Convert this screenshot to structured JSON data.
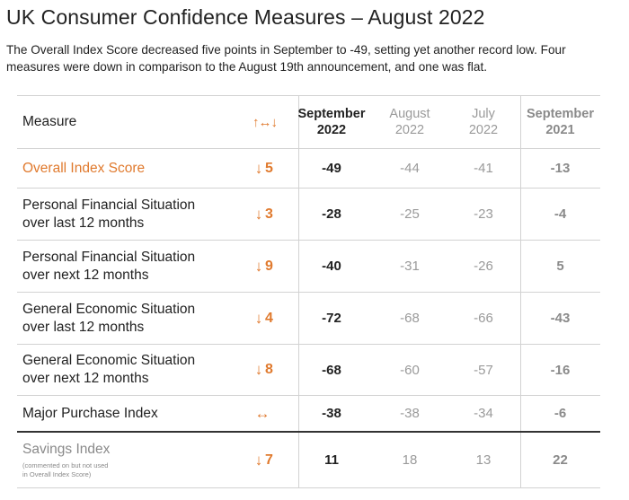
{
  "title": "UK Consumer Confidence Measures – August 2022",
  "subtitle": "The Overall Index Score decreased five points in September to -49, setting yet another record low. Four measures were down in comparison to the August 19th announcement, and one was flat.",
  "colors": {
    "accent": "#e07a2e",
    "muted": "#9a9a9a",
    "text": "#222222"
  },
  "table": {
    "headers": {
      "measure": "Measure",
      "change_icon": "up-left-right-down-arrows",
      "change_glyph": "↑↔↓",
      "sep22": [
        "September",
        "2022"
      ],
      "aug22": [
        "August",
        "2022"
      ],
      "jul22": [
        "July",
        "2022"
      ],
      "sep21": [
        "September",
        "2021"
      ]
    },
    "rows": [
      {
        "line1": "Overall Index Score",
        "line2": "",
        "arrow": "↓",
        "change": "5",
        "sep22": "-49",
        "aug22": "-44",
        "jul22": "-41",
        "sep21": "-13"
      },
      {
        "line1": "Personal Financial Situation",
        "line2": "over last 12 months",
        "arrow": "↓",
        "change": "3",
        "sep22": "-28",
        "aug22": "-25",
        "jul22": "-23",
        "sep21": "-4"
      },
      {
        "line1": "Personal Financial Situation",
        "line2": "over next 12 months",
        "arrow": "↓",
        "change": "9",
        "sep22": "-40",
        "aug22": "-31",
        "jul22": "-26",
        "sep21": "5"
      },
      {
        "line1": "General Economic Situation",
        "line2": "over last 12 months",
        "arrow": "↓",
        "change": "4",
        "sep22": "-72",
        "aug22": "-68",
        "jul22": "-66",
        "sep21": "-43"
      },
      {
        "line1": "General Economic Situation",
        "line2": "over next 12 months",
        "arrow": "↓",
        "change": "8",
        "sep22": "-68",
        "aug22": "-60",
        "jul22": "-57",
        "sep21": "-16"
      },
      {
        "line1": "Major Purchase Index",
        "line2": "",
        "arrow": "↔",
        "change": "",
        "sep22": "-38",
        "aug22": "-38",
        "jul22": "-34",
        "sep21": "-6"
      },
      {
        "line1": "Savings Index",
        "note1": "(commented on but not used",
        "note2": "in Overall Index Score)",
        "arrow": "↓",
        "change": "7",
        "sep22": "11",
        "aug22": "18",
        "jul22": "13",
        "sep21": "22"
      }
    ]
  }
}
